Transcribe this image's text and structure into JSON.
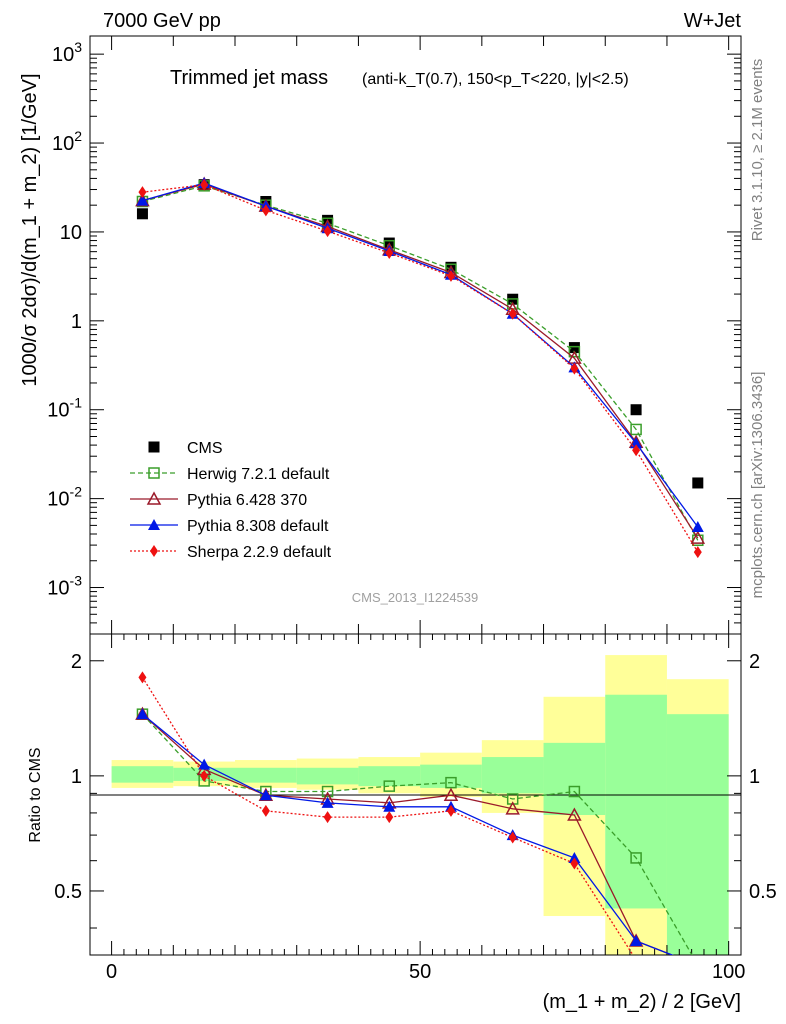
{
  "header": {
    "energy_label": "7000 GeV pp",
    "process_label": "W+Jet"
  },
  "side_labels": {
    "rivet": "Rivet 3.1.10, ≥ 2.1M events",
    "mcplots": "mcplots.cern.ch [arXiv:1306.3436]"
  },
  "watermark": "CMS_2013_I1224539",
  "chart_data": {
    "type": "scatter",
    "title": "Trimmed jet mass",
    "subtitle": "(anti-k_T(0.7), 150<p_T<220, |y|<2.5)",
    "xlabel": "(m_1 + m_2) / 2 [GeV]",
    "ylabel": "1000/σ 2dσ)/d(m_1 + m_2) [1/GeV]",
    "ratio_ylabel": "Ratio to CMS",
    "xlim": [
      -3.5,
      102
    ],
    "ylim": [
      0.0003,
      1600
    ],
    "yscale": "log",
    "ratio_ylim": [
      0.34,
      2.35
    ],
    "x_ticks": [
      "0",
      "50",
      "100"
    ],
    "y_ticks": [
      "10^-3",
      "10^-2",
      "10^-1",
      "1",
      "10",
      "10^2",
      "10^3"
    ],
    "ratio_ticks": [
      "0.5",
      "1",
      "2"
    ],
    "legend_position": "lower-left",
    "bin_edges": [
      0,
      10,
      20,
      30,
      40,
      50,
      60,
      70,
      80,
      90,
      100
    ],
    "x": [
      5,
      15,
      25,
      35,
      45,
      55,
      65,
      75,
      85,
      95
    ],
    "series": [
      {
        "name": "CMS",
        "color": "#000000",
        "marker": "square",
        "values": [
          16,
          34,
          22,
          13.5,
          7.5,
          4.0,
          1.75,
          0.5,
          0.1,
          0.015
        ]
      },
      {
        "name": "Herwig 7.2.1 default",
        "color": "#3a9e2a",
        "marker": "open-square",
        "dash": "5,3",
        "values": [
          22,
          33,
          20,
          12.5,
          7.0,
          3.8,
          1.55,
          0.45,
          0.06,
          0.0034
        ],
        "ratio": [
          1.45,
          0.97,
          0.91,
          0.91,
          0.94,
          0.96,
          0.87,
          0.91,
          0.61,
          0.23
        ]
      },
      {
        "name": "Pythia 6.428 370",
        "color": "#9b1a2a",
        "marker": "open-triangle",
        "dash": "",
        "values": [
          22.5,
          34.5,
          19.5,
          11.5,
          6.3,
          3.5,
          1.35,
          0.38,
          0.043,
          0.0036
        ],
        "ratio": [
          1.45,
          1.04,
          0.89,
          0.87,
          0.85,
          0.89,
          0.82,
          0.79,
          0.37,
          0.25
        ]
      },
      {
        "name": "Pythia 8.308 default",
        "color": "#0018e6",
        "marker": "triangle",
        "dash": "",
        "values": [
          22.5,
          35.5,
          19.5,
          11.0,
          6.1,
          3.3,
          1.2,
          0.3,
          0.042,
          0.0048
        ],
        "ratio": [
          1.45,
          1.07,
          0.89,
          0.85,
          0.83,
          0.83,
          0.7,
          0.61,
          0.37,
          0.27
        ]
      },
      {
        "name": "Sherpa 2.2.9 default",
        "color": "#ee1111",
        "marker": "diamond",
        "dash": "2,2",
        "values": [
          28,
          34,
          17.5,
          10.2,
          5.8,
          3.2,
          1.2,
          0.29,
          0.035,
          0.0025
        ],
        "ratio": [
          1.81,
          1.0,
          0.81,
          0.78,
          0.78,
          0.81,
          0.69,
          0.59,
          0.33,
          0.17
        ]
      }
    ],
    "ratio_bands": {
      "inner": [
        [
          0.96,
          1.06
        ],
        [
          0.97,
          1.05
        ],
        [
          0.96,
          1.05
        ],
        [
          0.95,
          1.05
        ],
        [
          0.94,
          1.06
        ],
        [
          0.93,
          1.07
        ],
        [
          0.9,
          1.12
        ],
        [
          0.79,
          1.22
        ],
        [
          0.45,
          1.63
        ],
        [
          0.3,
          1.45
        ]
      ],
      "outer": [
        [
          0.93,
          1.1
        ],
        [
          0.94,
          1.09
        ],
        [
          0.93,
          1.1
        ],
        [
          0.92,
          1.11
        ],
        [
          0.9,
          1.12
        ],
        [
          0.88,
          1.15
        ],
        [
          0.8,
          1.24
        ],
        [
          0.43,
          1.61
        ],
        [
          0.3,
          2.07
        ],
        [
          0.3,
          1.79
        ]
      ]
    }
  }
}
